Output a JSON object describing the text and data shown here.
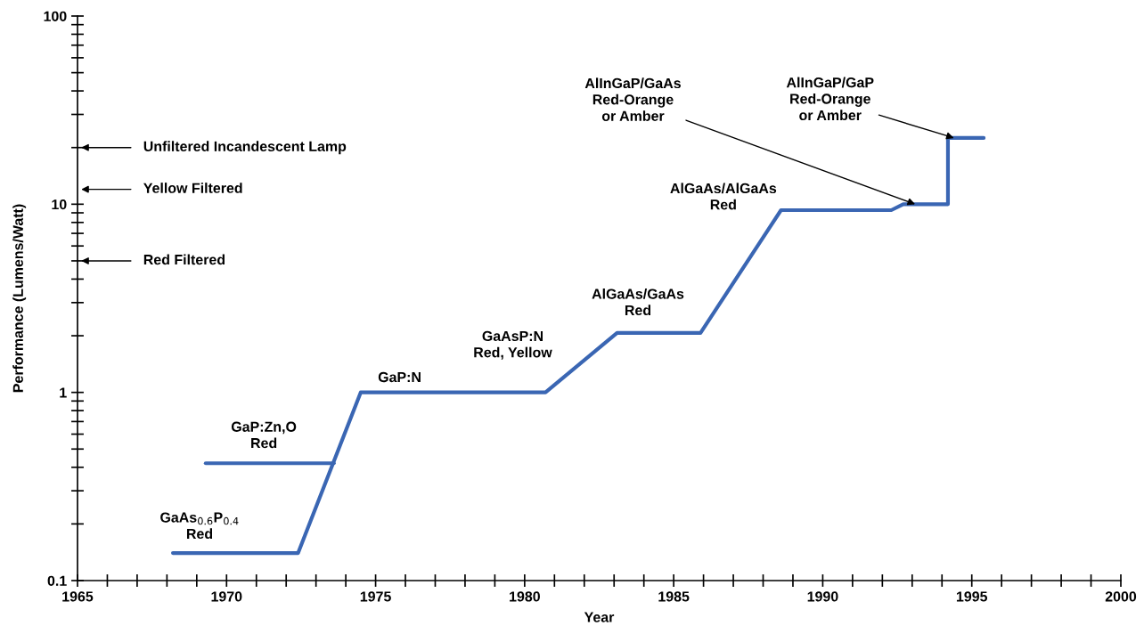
{
  "chart_data": {
    "type": "line",
    "xlabel": "Year",
    "ylabel": "Performance (Lumens/Watt)",
    "log": "y",
    "xlim": [
      1965,
      2000
    ],
    "xticks": [
      1965,
      1970,
      1975,
      1980,
      1985,
      1990,
      1995,
      2000
    ],
    "ylim": [
      0.1,
      100
    ],
    "yticks": [
      0.1,
      1,
      10,
      100
    ],
    "grid": false,
    "marker": "none",
    "line_style": "solid",
    "series": [
      {
        "color": "#3a66b3",
        "x": [
          1968.2,
          1972.4,
          1974.5,
          1980.7,
          1983.1,
          1985.9,
          1988.6,
          1992.3,
          1992.7,
          1994.2,
          1994.2,
          1995.4
        ],
        "values": [
          0.14,
          0.14,
          1.0,
          1.0,
          2.07,
          2.07,
          9.3,
          9.3,
          10,
          10,
          22.5,
          22.5
        ]
      },
      {
        "color": "#3a66b3",
        "x": [
          1969.3,
          1973.6
        ],
        "values": [
          0.42,
          0.42
        ]
      }
    ],
    "annotations": [
      "GaAs$_{0.6}$P$_{0.4}$\nRed",
      {
        "text": "GaP:Zn,O\nRed",
        "x": 1971.25,
        "y": 0.42
      },
      {
        "text": "GaP:N",
        "x": 1975.7,
        "y": 1.0
      },
      {
        "text": "GaAsP:N\nRed, Yellow",
        "x": 1979.6,
        "y": 1.0
      },
      {
        "text": "AlGaAs/GaAs\nRed",
        "x": 1983.8,
        "y": 2.07
      },
      "AlGaAs/AlGaAs\nRed",
      {
        "text": "AlInGaP/GaAs\nRed-Orange\nor Amber",
        "x": 1993.1,
        "y": 10
      },
      {
        "text": "AlInGaP/GaP\nRed-Orange\nor Amber",
        "x": 1994.4,
        "y": 22.5
      },
      "Unfiltered Incandescent Lamp",
      "Yellow Filtered",
      "Red Filtered"
    ]
  }
}
